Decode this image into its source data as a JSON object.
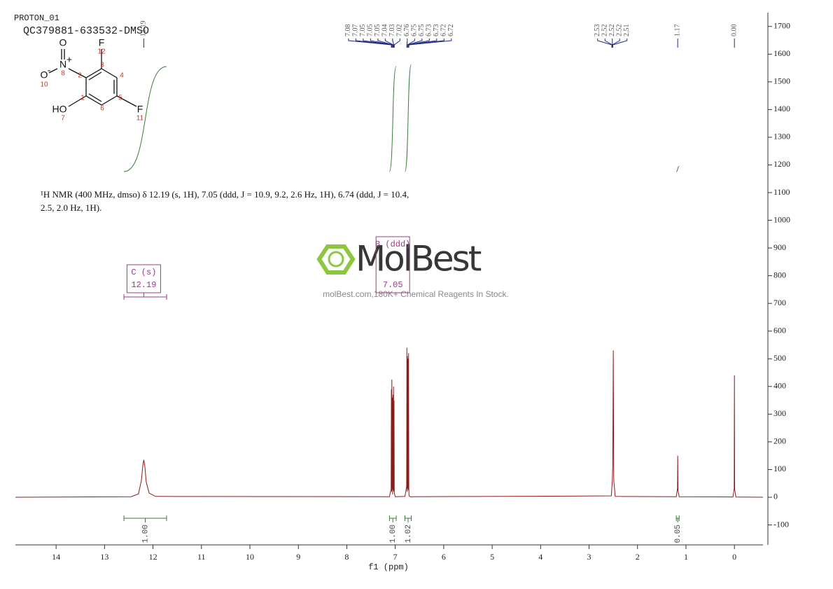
{
  "header": {
    "experiment": "PROTON_01",
    "sample": "QC379881-633532-DMSO"
  },
  "structure": {
    "labels": [
      "F",
      "12",
      "N",
      "+",
      "8",
      "O",
      "O",
      "-",
      "10",
      "2",
      "3",
      "4",
      "1",
      "5",
      "6",
      "HO",
      "7",
      "F",
      "11"
    ]
  },
  "description": "¹H NMR (400 MHz, dmso) δ 12.19 (s, 1H), 7.05 (ddd, J = 10.9, 9.2, 2.6 Hz, 1H), 6.74 (ddd, J = 10.4, 2.5, 2.0 Hz, 1H).",
  "watermark": {
    "logo": "MolBest",
    "tagline": "molBest.com,180K+ Chemical Reagents In Stock."
  },
  "chart_data": {
    "type": "nmr",
    "xlabel": "f1 (ppm)",
    "xlim": [
      14.84,
      -0.59
    ],
    "xticks": [
      14,
      13,
      12,
      11,
      10,
      9,
      8,
      7,
      6,
      5,
      4,
      3,
      2,
      1,
      0
    ],
    "ylim": [
      -172,
      1750
    ],
    "yticks": [
      -100,
      0,
      100,
      200,
      300,
      400,
      500,
      600,
      700,
      800,
      900,
      1000,
      1100,
      1200,
      1300,
      1400,
      1500,
      1600,
      1700
    ],
    "color": "#8b1a1a",
    "x": [
      14.84,
      12.45,
      12.3,
      12.24,
      12.21,
      12.19,
      12.17,
      12.14,
      12.08,
      11.95,
      7.12,
      7.085,
      7.08,
      7.075,
      7.07,
      7.065,
      7.06,
      7.055,
      7.045,
      7.04,
      7.035,
      7.03,
      7.025,
      7.02,
      7.0,
      6.8,
      6.765,
      6.76,
      6.755,
      6.75,
      6.745,
      6.735,
      6.73,
      6.725,
      6.72,
      6.715,
      6.69,
      3.5,
      2.54,
      2.52,
      2.51,
      2.5,
      2.49,
      2.46,
      1.2,
      1.175,
      1.17,
      1.165,
      1.14,
      0.03,
      0.005,
      0,
      -0.005,
      -0.03,
      -0.59
    ],
    "values": [
      0,
      2,
      12,
      60,
      115,
      135,
      115,
      55,
      15,
      3,
      2,
      30,
      390,
      20,
      425,
      30,
      360,
      10,
      370,
      25,
      400,
      20,
      350,
      15,
      2,
      3,
      40,
      540,
      20,
      510,
      30,
      500,
      25,
      520,
      30,
      5,
      2,
      4,
      5,
      60,
      120,
      530,
      60,
      3,
      2,
      30,
      150,
      25,
      2,
      1,
      30,
      440,
      30,
      1,
      0
    ],
    "peaks": {
      "values": [
        12.19,
        7.08,
        7.07,
        7.05,
        7.05,
        7.05,
        7.04,
        7.03,
        7.02,
        6.76,
        6.75,
        6.75,
        6.73,
        6.73,
        6.72,
        6.72,
        2.53,
        2.52,
        2.52,
        2.52,
        2.51,
        1.17,
        0
      ],
      "value_labels": [
        "12.19",
        "7.08",
        "7.07",
        "7.05",
        "7.05",
        "7.05",
        "7.04",
        "7.03",
        "7.02",
        "6.76",
        "6.75",
        "6.75",
        "6.73",
        "6.73",
        "6.72",
        "6.72",
        "2.53",
        "2.52",
        "2.52",
        "2.52",
        "2.51",
        "1.17",
        "0.00"
      ]
    },
    "integrals": {
      "ranges": [
        [
          12.6,
          11.72
        ],
        [
          7.12,
          6.98
        ],
        [
          6.8,
          6.67
        ],
        [
          1.2,
          1.14
        ]
      ],
      "values": [
        1,
        1,
        1.02,
        0.05
      ],
      "value_labels": [
        "1.00",
        "1.00",
        "1.02",
        "0.05"
      ]
    },
    "multiplets": [
      {
        "label": "C (s)",
        "shift": 12.19,
        "range": [
          12.6,
          11.72
        ]
      },
      {
        "label": "B (ddd)",
        "shift": 7.05
      }
    ]
  }
}
